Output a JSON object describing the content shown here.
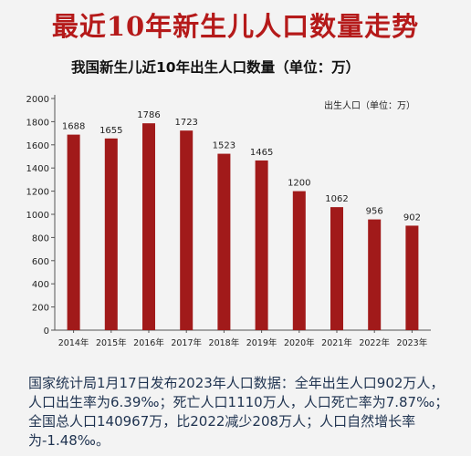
{
  "headline": "最近10年新生儿人口数量走势",
  "footnote": "国家统计局1月17日发布2023年人口数据：全年出生人口902万人，人口出生率为6.39‰；死亡人口1110万人，人口死亡率为7.87‰；全国总人口140967万，比2022减少208万人；人口自然增长率为-1.48‰。",
  "colors": {
    "bar": "#a11a1a",
    "headline": "#b51a1a"
  },
  "chart_data": {
    "type": "bar",
    "title": "我国新生儿近10年出生人口数量（单位：万）",
    "legend": "出生人口（单位：万）",
    "legend_position": "top-right",
    "categories": [
      "2014年",
      "2015年",
      "2016年",
      "2017年",
      "2018年",
      "2019年",
      "2020年",
      "2021年",
      "2022年",
      "2023年"
    ],
    "series": [
      {
        "name": "出生人口",
        "values": [
          1688,
          1655,
          1786,
          1723,
          1523,
          1465,
          1200,
          1062,
          956,
          902
        ]
      }
    ],
    "data_labels": [
      "1688",
      "1655",
      "1786",
      "1723",
      "1523",
      "1465",
      "1200",
      "1062",
      "956",
      "902"
    ],
    "yticks": [
      0,
      200,
      400,
      600,
      800,
      1000,
      1200,
      1400,
      1600,
      1800,
      2000
    ],
    "ylim": [
      0,
      2000
    ],
    "grid": false
  }
}
